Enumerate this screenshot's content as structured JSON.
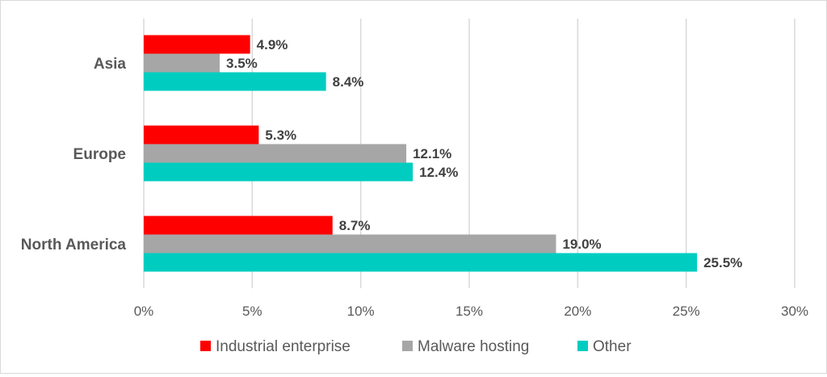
{
  "chart_data": {
    "type": "bar",
    "orientation": "horizontal",
    "title": "",
    "categories": [
      "Asia",
      "Europe",
      "North America"
    ],
    "series": [
      {
        "name": "Industrial enterprise",
        "color": "#ff0000",
        "values": [
          4.9,
          5.3,
          8.7
        ],
        "labels": [
          "4.9%",
          "5.3%",
          "8.7%"
        ]
      },
      {
        "name": "Malware hosting",
        "color": "#a6a6a6",
        "values": [
          3.5,
          12.1,
          19.0
        ],
        "labels": [
          "3.5%",
          "12.1%",
          "19.0%"
        ]
      },
      {
        "name": "Other",
        "color": "#00cdc0",
        "values": [
          8.4,
          12.4,
          25.5
        ],
        "labels": [
          "8.4%",
          "12.4%",
          "25.5%"
        ]
      }
    ],
    "xlim": [
      0,
      30
    ],
    "ticks": [
      0,
      5,
      10,
      15,
      20,
      25,
      30
    ],
    "tick_labels": [
      "0%",
      "5%",
      "10%",
      "15%",
      "20%",
      "25%",
      "30%"
    ],
    "grid": true,
    "legend_position": "bottom",
    "xlabel": "",
    "ylabel": ""
  }
}
